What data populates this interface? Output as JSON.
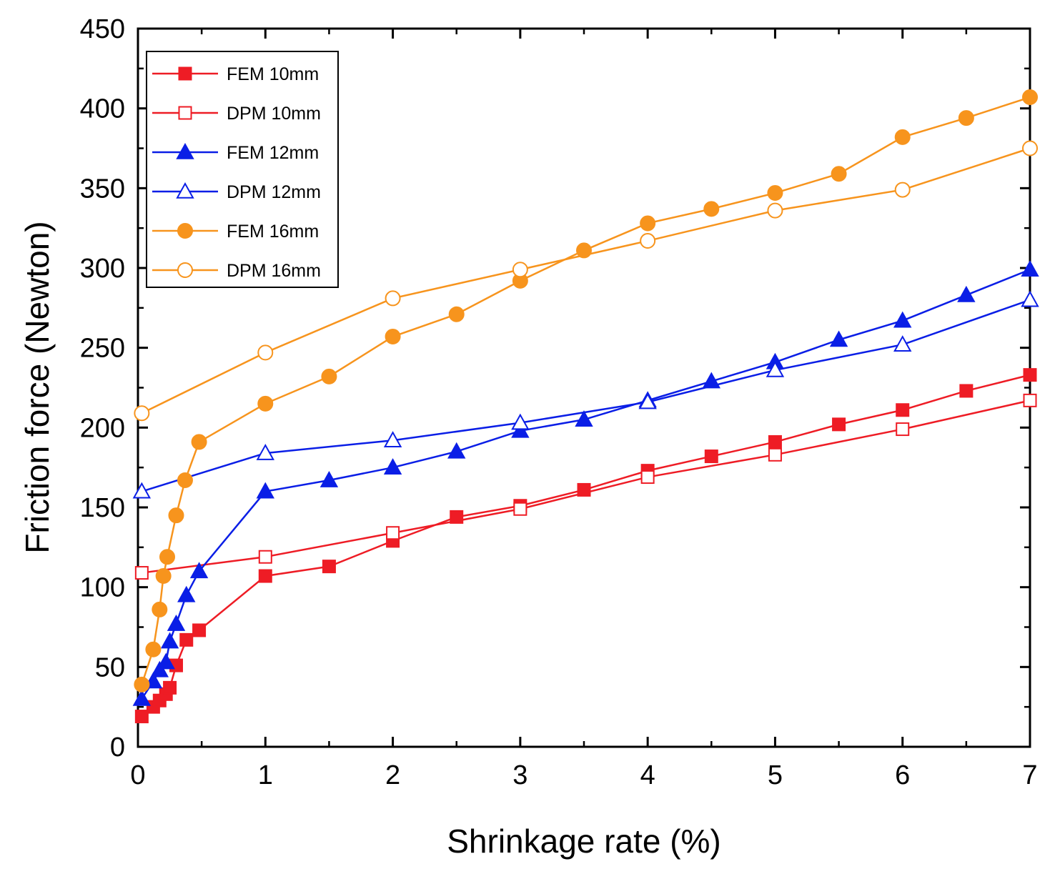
{
  "chart_data": {
    "type": "line",
    "title": "",
    "xlabel": "Shrinkage rate (%)",
    "ylabel": "Friction force (Newton)",
    "xlim": [
      0,
      7
    ],
    "ylim": [
      0,
      450
    ],
    "xticks": [
      0,
      1,
      2,
      3,
      4,
      5,
      6,
      7
    ],
    "yticks": [
      0,
      50,
      100,
      150,
      200,
      250,
      300,
      350,
      400,
      450
    ],
    "grid": false,
    "legend_position": "top-left",
    "series": [
      {
        "name": "FEM 10mm",
        "color": "#ee1c25",
        "marker": "square",
        "filled": true,
        "x": [
          0.03,
          0.12,
          0.17,
          0.22,
          0.25,
          0.3,
          0.38,
          0.48,
          1,
          1.5,
          2,
          2.5,
          3,
          3.5,
          4,
          4.5,
          5,
          5.5,
          6,
          6.5,
          7
        ],
        "y": [
          19,
          25,
          29,
          33,
          37,
          51,
          67,
          73,
          107,
          113,
          129,
          144,
          151,
          161,
          173,
          182,
          191,
          202,
          211,
          223,
          233
        ]
      },
      {
        "name": "DPM 10mm",
        "color": "#ee1c25",
        "marker": "square",
        "filled": false,
        "x": [
          0.03,
          1,
          2,
          3,
          4,
          5,
          6,
          7
        ],
        "y": [
          109,
          119,
          134,
          149,
          169,
          183,
          199,
          217
        ]
      },
      {
        "name": "FEM 12mm",
        "color": "#0a1ee6",
        "marker": "triangle",
        "filled": true,
        "x": [
          0.03,
          0.12,
          0.17,
          0.22,
          0.25,
          0.3,
          0.38,
          0.48,
          1,
          1.5,
          2,
          2.5,
          3,
          3.5,
          4,
          4.5,
          5,
          5.5,
          6,
          6.5,
          7
        ],
        "y": [
          30,
          41,
          48,
          53,
          66,
          77,
          95,
          110,
          160,
          167,
          175,
          185,
          198,
          205,
          217,
          229,
          241,
          255,
          267,
          283,
          299
        ]
      },
      {
        "name": "DPM 12mm",
        "color": "#0a1ee6",
        "marker": "triangle",
        "filled": false,
        "x": [
          0.03,
          1,
          2,
          3,
          4,
          5,
          6,
          7
        ],
        "y": [
          160,
          184,
          192,
          203,
          216,
          236,
          252,
          280
        ]
      },
      {
        "name": "FEM 16mm",
        "color": "#f7941d",
        "marker": "circle",
        "filled": true,
        "x": [
          0.03,
          0.12,
          0.17,
          0.2,
          0.23,
          0.3,
          0.37,
          0.48,
          1,
          1.5,
          2,
          2.5,
          3,
          3.5,
          4,
          4.5,
          5,
          5.5,
          6,
          6.5,
          7
        ],
        "y": [
          39,
          61,
          86,
          107,
          119,
          145,
          167,
          191,
          215,
          232,
          257,
          271,
          292,
          311,
          328,
          337,
          347,
          359,
          382,
          394,
          407
        ]
      },
      {
        "name": "DPM 16mm",
        "color": "#f7941d",
        "marker": "circle",
        "filled": false,
        "x": [
          0.03,
          1,
          2,
          3,
          4,
          5,
          6,
          7
        ],
        "y": [
          209,
          247,
          281,
          299,
          317,
          336,
          349,
          375
        ]
      }
    ]
  }
}
